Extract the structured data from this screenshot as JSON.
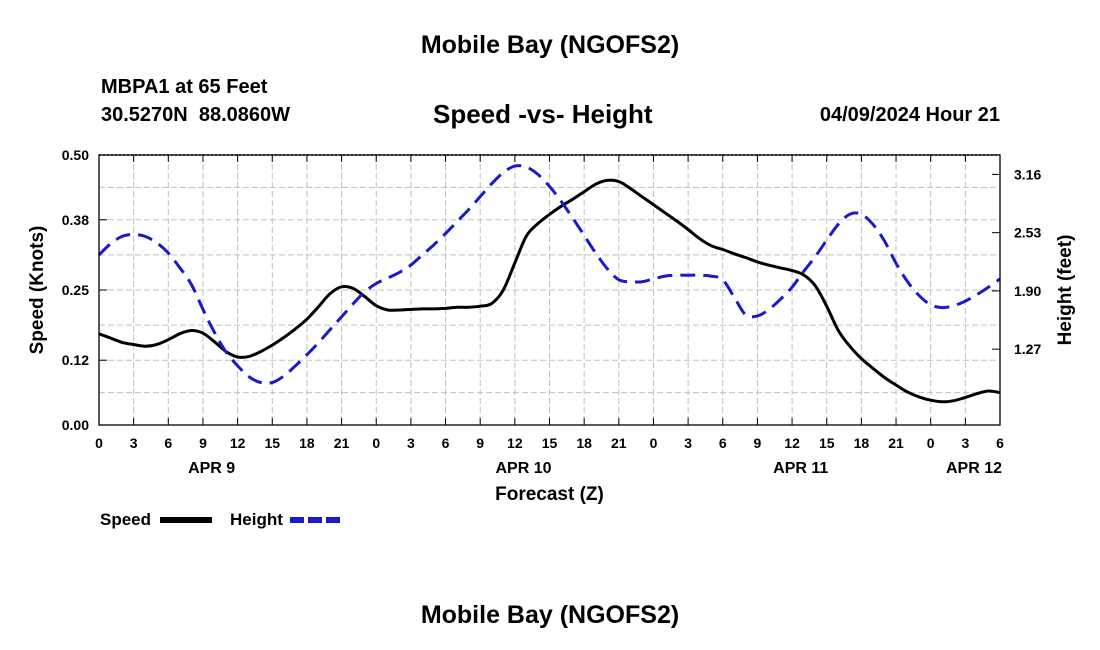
{
  "header": {
    "title": "Mobile Bay (NGOFS2)",
    "station": "MBPA1 at 65 Feet",
    "coords": "30.5270N  88.0860W",
    "subtitle": "Speed -vs- Height",
    "datetime": "04/09/2024 Hour 21"
  },
  "footer": {
    "title_repeat": "Mobile Bay (NGOFS2)"
  },
  "legend": {
    "speed_label": "Speed",
    "height_label": "Height"
  },
  "colors": {
    "speed": "#000000",
    "height": "#1a1acc",
    "grid": "#c0c0c0"
  },
  "chart_data": {
    "type": "line",
    "title": "Speed -vs- Height",
    "xlabel": "Forecast (Z)",
    "ylabel": "Speed (Knots)",
    "ylabel_right": "Height (feet)",
    "x_range_hours": [
      0,
      78
    ],
    "ylim": [
      0,
      0.5
    ],
    "ylim_right": [
      0.45,
      3.37
    ],
    "yticks": [
      "0.00",
      "0.12",
      "0.25",
      "0.38",
      "0.50"
    ],
    "yticks_right": [
      "1.27",
      "1.90",
      "2.53",
      "3.16"
    ],
    "xticks": [
      "0",
      "3",
      "6",
      "9",
      "12",
      "15",
      "18",
      "21",
      "0",
      "3",
      "6",
      "9",
      "12",
      "15",
      "18",
      "21",
      "0",
      "3",
      "6",
      "9",
      "12",
      "15",
      "18",
      "21",
      "0",
      "3",
      "6"
    ],
    "day_labels": [
      {
        "label": "APR 9",
        "hour": 9.75
      },
      {
        "label": "APR 10",
        "hour": 36.75
      },
      {
        "label": "APR 11",
        "hour": 60.75
      },
      {
        "label": "APR 12",
        "hour": 75.75
      }
    ],
    "series": [
      {
        "name": "Speed",
        "style": "solid",
        "axis": "left",
        "x": [
          0,
          1,
          2,
          3,
          4,
          5,
          6,
          7,
          8,
          9,
          10,
          11,
          12,
          13,
          14,
          15,
          16,
          17,
          18,
          19,
          20,
          21,
          22,
          23,
          24,
          25,
          26,
          27,
          28,
          29,
          30,
          31,
          32,
          33,
          34,
          35,
          36,
          37,
          38,
          39,
          40,
          41,
          42,
          43,
          44,
          45,
          46,
          47,
          48,
          49,
          50,
          51,
          52,
          53,
          54,
          55,
          56,
          57,
          58,
          59,
          60,
          61,
          62,
          63,
          64,
          65,
          66,
          67,
          68,
          69,
          70,
          71,
          72,
          73,
          74,
          75,
          76,
          77,
          78
        ],
        "values": [
          0.169,
          0.161,
          0.153,
          0.149,
          0.146,
          0.149,
          0.158,
          0.169,
          0.175,
          0.17,
          0.154,
          0.136,
          0.126,
          0.127,
          0.136,
          0.148,
          0.162,
          0.178,
          0.196,
          0.219,
          0.243,
          0.256,
          0.253,
          0.238,
          0.221,
          0.213,
          0.213,
          0.214,
          0.215,
          0.215,
          0.216,
          0.218,
          0.218,
          0.22,
          0.225,
          0.25,
          0.3,
          0.35,
          0.373,
          0.39,
          0.405,
          0.418,
          0.432,
          0.446,
          0.453,
          0.451,
          0.438,
          0.423,
          0.408,
          0.393,
          0.378,
          0.362,
          0.345,
          0.332,
          0.325,
          0.317,
          0.31,
          0.302,
          0.296,
          0.291,
          0.286,
          0.278,
          0.258,
          0.22,
          0.175,
          0.146,
          0.123,
          0.105,
          0.088,
          0.074,
          0.061,
          0.052,
          0.046,
          0.043,
          0.045,
          0.051,
          0.058,
          0.063,
          0.06
        ]
      },
      {
        "name": "Height",
        "style": "dashed",
        "axis": "right",
        "x": [
          0,
          1,
          2,
          3,
          4,
          5,
          6,
          7,
          8,
          9,
          10,
          11,
          12,
          13,
          14,
          15,
          16,
          17,
          18,
          19,
          20,
          21,
          22,
          23,
          24,
          25,
          26,
          27,
          28,
          29,
          30,
          31,
          32,
          33,
          34,
          35,
          36,
          37,
          38,
          39,
          40,
          41,
          42,
          43,
          44,
          45,
          46,
          47,
          48,
          49,
          50,
          51,
          52,
          53,
          54,
          55,
          56,
          57,
          58,
          59,
          60,
          61,
          62,
          63,
          64,
          65,
          66,
          67,
          68,
          69,
          70,
          71,
          72,
          73,
          74,
          75,
          76,
          77,
          78
        ],
        "values": [
          2.29,
          2.41,
          2.49,
          2.51,
          2.49,
          2.42,
          2.31,
          2.15,
          1.97,
          1.7,
          1.45,
          1.24,
          1.09,
          0.97,
          0.91,
          0.91,
          0.98,
          1.09,
          1.21,
          1.34,
          1.48,
          1.62,
          1.76,
          1.89,
          1.98,
          2.04,
          2.1,
          2.18,
          2.29,
          2.4,
          2.52,
          2.65,
          2.78,
          2.92,
          3.06,
          3.18,
          3.25,
          3.24,
          3.16,
          3.03,
          2.87,
          2.69,
          2.5,
          2.31,
          2.14,
          2.02,
          2.0,
          2.0,
          2.03,
          2.06,
          2.07,
          2.07,
          2.07,
          2.06,
          2.02,
          1.83,
          1.64,
          1.63,
          1.7,
          1.81,
          1.94,
          2.11,
          2.27,
          2.45,
          2.62,
          2.73,
          2.73,
          2.62,
          2.44,
          2.2,
          2.0,
          1.85,
          1.75,
          1.72,
          1.74,
          1.79,
          1.86,
          1.94,
          2.03
        ]
      }
    ]
  }
}
